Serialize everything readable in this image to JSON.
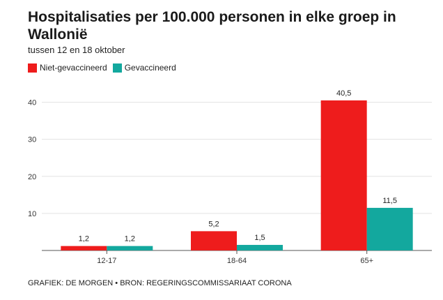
{
  "title": "Hospitalisaties per 100.000 personen in elke groep in Wallonië",
  "subtitle": "tussen 12 en 18 oktober",
  "footer": "GRAFIEK: DE MORGEN • BRON: REGERINGSCOMMISSARIAAT CORONA",
  "chart_data": {
    "type": "bar",
    "title": "Hospitalisaties per 100.000 personen in elke groep in Wallonië",
    "subtitle": "tussen 12 en 18 oktober",
    "categories": [
      "12-17",
      "18-64",
      "65+"
    ],
    "series": [
      {
        "name": "Niet-gevaccineerd",
        "color": "#ee1c1c",
        "values": [
          1.2,
          5.2,
          40.5
        ],
        "labels": [
          "1,2",
          "5,2",
          "40,5"
        ]
      },
      {
        "name": "Gevaccineerd",
        "color": "#13a89e",
        "values": [
          1.2,
          1.5,
          11.5
        ],
        "labels": [
          "1,2",
          "1,5",
          "11,5"
        ]
      }
    ],
    "ylim": [
      0,
      45
    ],
    "yticks": [
      10,
      20,
      30,
      40
    ],
    "grid": true,
    "legend": "top-left"
  }
}
